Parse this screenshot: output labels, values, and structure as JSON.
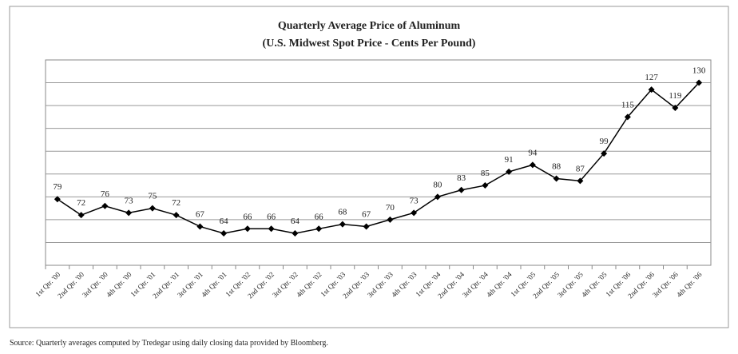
{
  "chart_data": {
    "type": "line",
    "title": "Quarterly Average Price of Aluminum",
    "subtitle": "(U.S. Midwest Spot Price - Cents Per Pound)",
    "categories": [
      "1st Qtr. '00",
      "2nd Qtr. '00",
      "3rd Qtr. '00",
      "4th Qtr. '00",
      "1st Qtr. '01",
      "2nd Qtr. '01",
      "3rd Qtr. '01",
      "4th Qtr. '01",
      "1st Qtr. '02",
      "2nd Qtr. '02",
      "3rd Qtr. '02",
      "4th Qtr. '02",
      "1st Qtr. '03",
      "2nd Qtr. '03",
      "3rd Qtr. '03",
      "4th Qtr. '03",
      "1st Qtr. '04",
      "2nd Qtr. '04",
      "3rd Qtr. '04",
      "4th Qtr. '04",
      "1st Qtr. '05",
      "2nd Qtr. '05",
      "3rd Qtr. '05",
      "4th Qtr. '05",
      "1st Qtr. '06",
      "2nd Qtr. '06",
      "3rd Qtr. '06",
      "4th Qtr. '06"
    ],
    "values": [
      79,
      72,
      76,
      73,
      75,
      72,
      67,
      64,
      66,
      66,
      64,
      66,
      68,
      67,
      70,
      73,
      80,
      83,
      85,
      91,
      94,
      88,
      87,
      99,
      115,
      127,
      119,
      130
    ],
    "color": "#000000",
    "ylim": [
      50,
      140
    ],
    "yticks": [
      60,
      70,
      80,
      90,
      100,
      110,
      120,
      130
    ],
    "grid": true,
    "source": "Source:  Quarterly averages computed by Tredegar using daily closing data provided by Bloomberg."
  }
}
